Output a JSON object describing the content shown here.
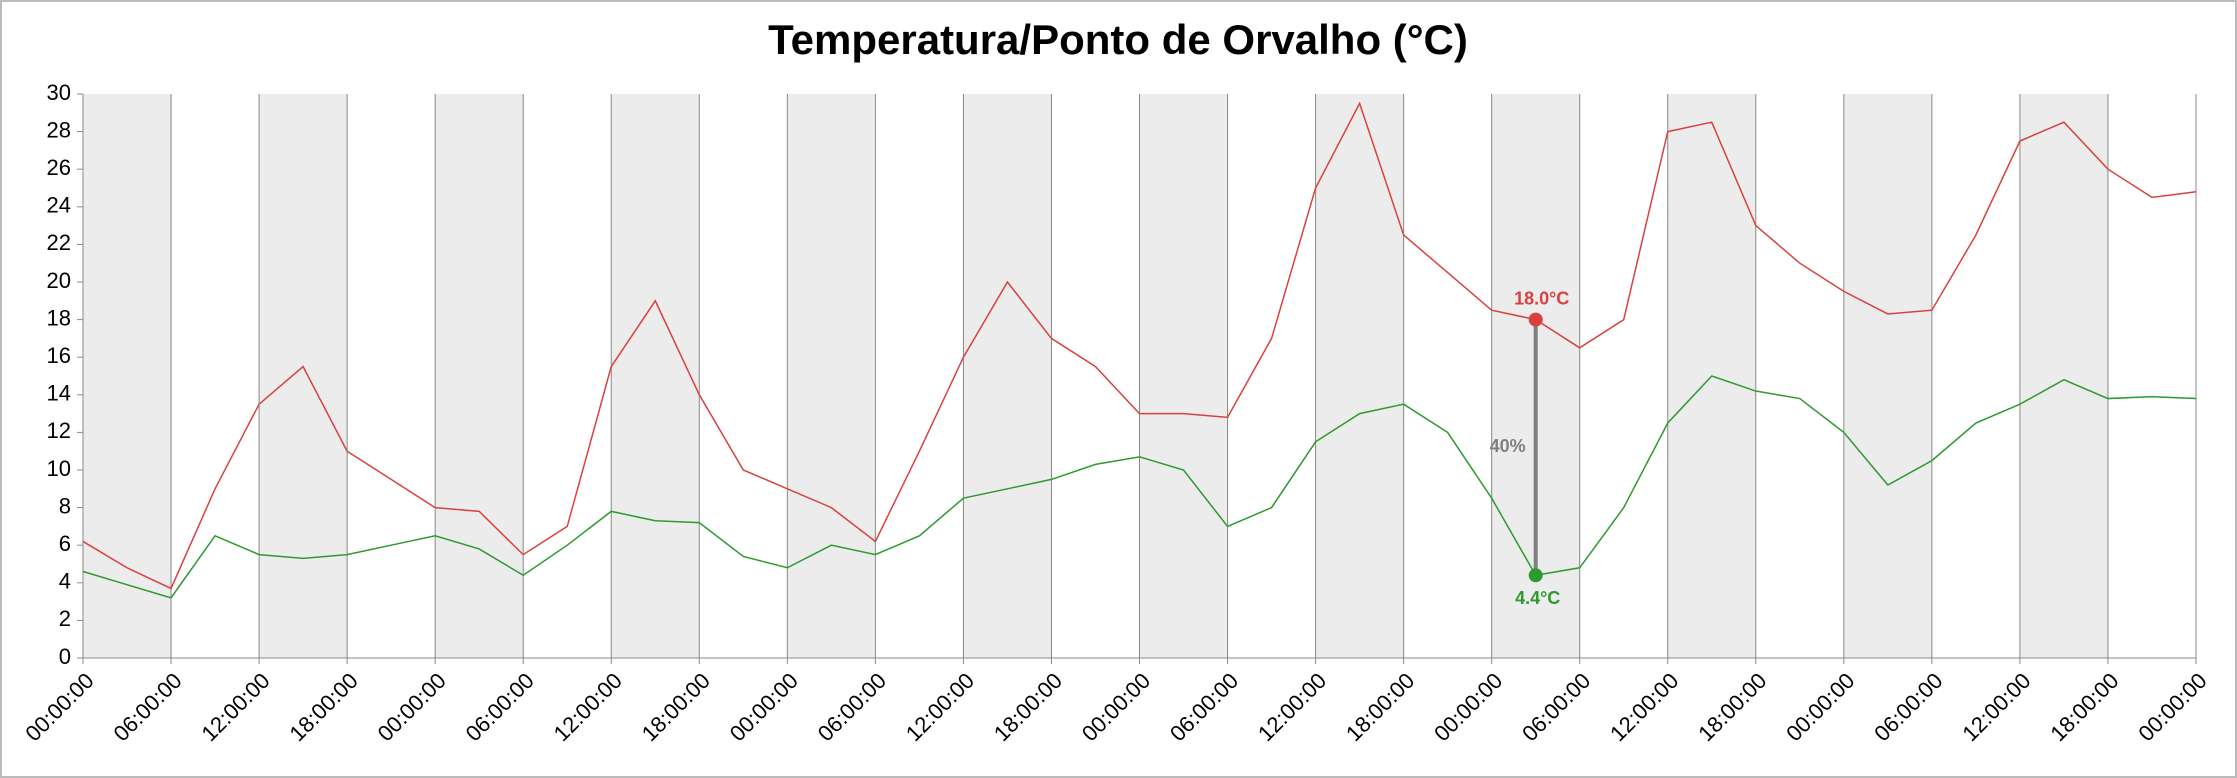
{
  "chart_data": {
    "type": "line",
    "title": "Temperatura/Ponto de Orvalho (°C)",
    "x": [
      0,
      3,
      6,
      9,
      12,
      15,
      18,
      21,
      24,
      27,
      30,
      33,
      36,
      39,
      42,
      45,
      48,
      51,
      54,
      57,
      60,
      63,
      66,
      69,
      72,
      75,
      78,
      81,
      84,
      87,
      90,
      93,
      96,
      99,
      102,
      105,
      108,
      111,
      114,
      117,
      120,
      123,
      126,
      129,
      132,
      135,
      138,
      141,
      144
    ],
    "series": [
      {
        "name": "Temperatura",
        "color": "#d9413f",
        "values": [
          6.2,
          4.8,
          3.7,
          9,
          13.5,
          15.5,
          11,
          9.5,
          8,
          7.8,
          5.5,
          7,
          15.5,
          19,
          14,
          10,
          9,
          8,
          6.2,
          11,
          16,
          20,
          17,
          15.5,
          13,
          13,
          12.8,
          17,
          25,
          29.5,
          22.5,
          20.5,
          18.5,
          18,
          16.5,
          18,
          28,
          28.5,
          23,
          21,
          19.5,
          18.3,
          18.5,
          22.5,
          27.5,
          28.5,
          26,
          24.5,
          24.8
        ]
      },
      {
        "name": "Ponto de Orvalho",
        "color": "#2e9a2e",
        "values": [
          4.6,
          3.9,
          3.2,
          6.5,
          5.5,
          5.3,
          5.5,
          6,
          6.5,
          5.8,
          4.4,
          6,
          7.8,
          7.3,
          7.2,
          5.4,
          4.8,
          6,
          5.5,
          6.5,
          8.5,
          9,
          9.5,
          10.3,
          10.7,
          10,
          7,
          8,
          11.5,
          13,
          13.5,
          12,
          8.5,
          4.4,
          4.8,
          8,
          12.5,
          15,
          14.2,
          13.8,
          12,
          9.2,
          10.5,
          12.5,
          13.5,
          14.8,
          13.8,
          13.9,
          13.8
        ]
      }
    ],
    "annotation": {
      "x": 99,
      "top": 18.0,
      "top_label": "18.0°C",
      "bottom": 4.4,
      "bottom_label": "4.4°C",
      "label": "40%"
    },
    "xlim": [
      0,
      144
    ],
    "xticks": [
      {
        "value": 0,
        "label": "00:00:00"
      },
      {
        "value": 6,
        "label": "06:00:00"
      },
      {
        "value": 12,
        "label": "12:00:00"
      },
      {
        "value": 18,
        "label": "18:00:00"
      },
      {
        "value": 24,
        "label": "00:00:00"
      },
      {
        "value": 30,
        "label": "06:00:00"
      },
      {
        "value": 36,
        "label": "12:00:00"
      },
      {
        "value": 42,
        "label": "18:00:00"
      },
      {
        "value": 48,
        "label": "00:00:00"
      },
      {
        "value": 54,
        "label": "06:00:00"
      },
      {
        "value": 60,
        "label": "12:00:00"
      },
      {
        "value": 66,
        "label": "18:00:00"
      },
      {
        "value": 72,
        "label": "00:00:00"
      },
      {
        "value": 78,
        "label": "06:00:00"
      },
      {
        "value": 84,
        "label": "12:00:00"
      },
      {
        "value": 90,
        "label": "18:00:00"
      },
      {
        "value": 96,
        "label": "00:00:00"
      },
      {
        "value": 102,
        "label": "06:00:00"
      },
      {
        "value": 108,
        "label": "12:00:00"
      },
      {
        "value": 114,
        "label": "18:00:00"
      },
      {
        "value": 120,
        "label": "00:00:00"
      },
      {
        "value": 126,
        "label": "06:00:00"
      },
      {
        "value": 132,
        "label": "12:00:00"
      },
      {
        "value": 138,
        "label": "18:00:00"
      },
      {
        "value": 144,
        "label": "00:00:00"
      }
    ],
    "ylim": [
      0,
      30
    ],
    "yticks": [
      0,
      2,
      4,
      6,
      8,
      10,
      12,
      14,
      16,
      18,
      20,
      22,
      24,
      26,
      28,
      30
    ],
    "grid": true
  }
}
